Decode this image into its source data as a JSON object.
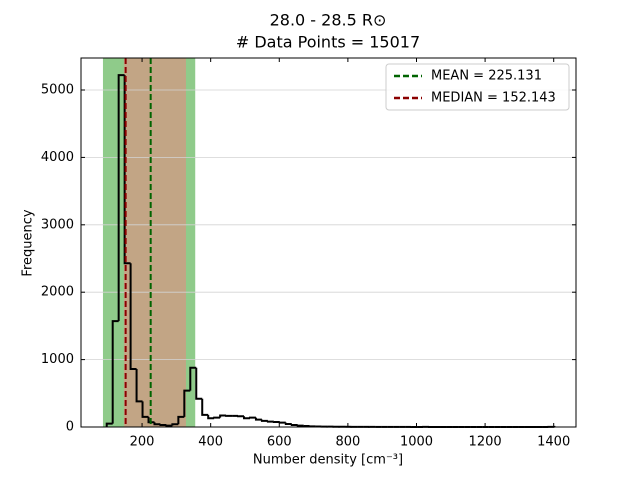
{
  "chart_data": {
    "type": "histogram",
    "title": "28.0 - 28.5 R⊙",
    "subtitle": "# Data Points = 15017",
    "xlabel": "Number density [cm⁻³]",
    "ylabel": "Frequency",
    "bins": [
      97,
      114.4,
      131.8,
      149.2,
      166.6,
      184,
      201.4,
      218.8,
      236.2,
      253.6,
      271,
      288.4,
      305.8,
      323.2,
      340.6,
      358,
      375.4,
      392.8,
      410.2,
      427.6,
      445,
      462.4,
      479.8,
      497.2,
      514.6,
      532,
      549.4,
      566.8,
      584.2,
      601.6,
      619,
      636.4,
      653.8,
      671.2,
      688.6,
      706,
      723.4,
      740.8,
      758.2,
      775.6,
      793,
      810.4,
      827.8,
      845.2,
      862.6,
      880,
      897.4,
      914.8,
      932.2,
      949.6,
      967,
      984.4,
      1001.8,
      1019.2,
      1036.6,
      1054,
      1071.4,
      1088.8,
      1106.2,
      1123.6,
      1141,
      1158.4,
      1175.8,
      1193.2,
      1210.6,
      1228,
      1245.4,
      1262.8,
      1280.2,
      1297.6,
      1315,
      1332.4,
      1349.8,
      1367.2,
      1384.6,
      1402
    ],
    "counts": [
      50,
      1570,
      5220,
      2430,
      860,
      380,
      150,
      70,
      40,
      30,
      20,
      40,
      150,
      540,
      880,
      420,
      180,
      130,
      140,
      170,
      165,
      165,
      160,
      130,
      140,
      110,
      90,
      80,
      75,
      65,
      45,
      30,
      20,
      15,
      10,
      8,
      6,
      5,
      4,
      3,
      3,
      2,
      2,
      2,
      1,
      1,
      1,
      1,
      1,
      1,
      1,
      0,
      0,
      1,
      0,
      0,
      0,
      0,
      0,
      0,
      0,
      0,
      0,
      0,
      0,
      0,
      0,
      0,
      0,
      0,
      0,
      0,
      0,
      0,
      1
    ],
    "color": "#000000",
    "spans": [
      {
        "range": [
          86,
          355
        ],
        "color": "#8fcb8a"
      },
      {
        "range": [
          147,
          328
        ],
        "color": "#c2a585"
      }
    ],
    "lines": [
      {
        "name": "MEAN = 225.131",
        "value": 225.131,
        "color": "#006400"
      },
      {
        "name": "MEDIAN = 152.143",
        "value": 152.143,
        "color": "#8b0000"
      }
    ],
    "xlim": [
      22,
      1465
    ],
    "ylim": [
      0,
      5475
    ],
    "xticks": [
      200,
      400,
      600,
      800,
      1000,
      1200,
      1400
    ],
    "yticks": [
      0,
      1000,
      2000,
      3000,
      4000,
      5000
    ],
    "grid": "y",
    "legend": "upper right"
  }
}
